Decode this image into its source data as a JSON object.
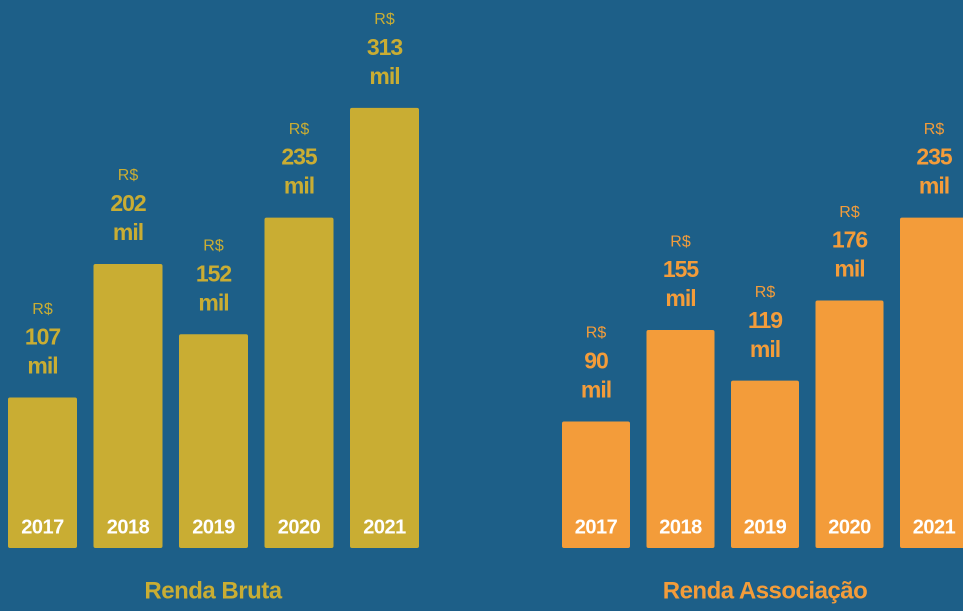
{
  "chart_data": [
    {
      "type": "bar",
      "title": "Renda Bruta",
      "categories": [
        "2017",
        "2018",
        "2019",
        "2020",
        "2021"
      ],
      "values": [
        107,
        202,
        152,
        235,
        313
      ],
      "value_prefix": "R$",
      "value_suffix": "mil",
      "color": "#c9ad33",
      "ylim": [
        0,
        330
      ]
    },
    {
      "type": "bar",
      "title": "Renda Associação",
      "categories": [
        "2017",
        "2018",
        "2019",
        "2020",
        "2021"
      ],
      "values": [
        90,
        155,
        119,
        176,
        235
      ],
      "value_prefix": "R$",
      "value_suffix": "mil",
      "color": "#f39c3a",
      "ylim": [
        0,
        330
      ]
    }
  ]
}
